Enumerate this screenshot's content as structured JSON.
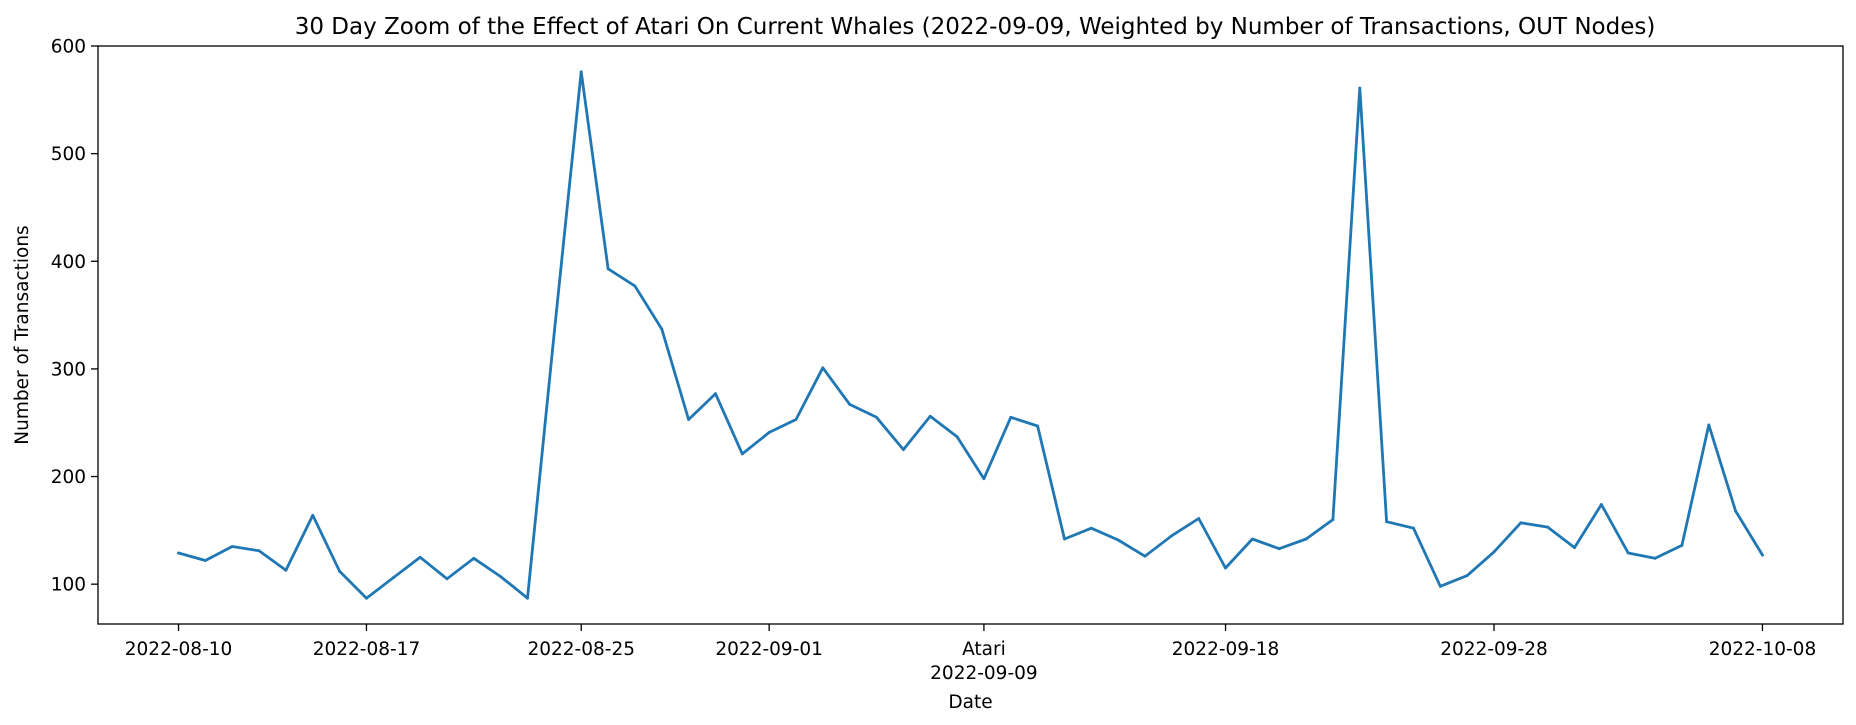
{
  "chart_data": {
    "type": "line",
    "title": "30 Day Zoom of the Effect of Atari On Current Whales (2022-09-09, Weighted by Number of Transactions, OUT Nodes)",
    "xlabel": "Date",
    "ylabel": "Number of Transactions",
    "ylim": [
      63,
      600
    ],
    "xlim": [
      "2022-08-07",
      "2022-10-11"
    ],
    "grid": false,
    "yticks": [
      100,
      200,
      300,
      400,
      500,
      600
    ],
    "xticks": [
      {
        "date": "2022-08-10",
        "label": "2022-08-10"
      },
      {
        "date": "2022-08-17",
        "label": "2022-08-17"
      },
      {
        "date": "2022-08-25",
        "label": "2022-08-25"
      },
      {
        "date": "2022-09-01",
        "label": "2022-09-01"
      },
      {
        "date": "2022-09-09",
        "label": "Atari",
        "label2": "2022-09-09"
      },
      {
        "date": "2022-09-18",
        "label": "2022-09-18"
      },
      {
        "date": "2022-09-28",
        "label": "2022-09-28"
      },
      {
        "date": "2022-10-08",
        "label": "2022-10-08"
      }
    ],
    "line_color": "#1f77b4",
    "series": [
      {
        "x": [
          "2022-08-10",
          "2022-08-11",
          "2022-08-12",
          "2022-08-13",
          "2022-08-14",
          "2022-08-15",
          "2022-08-16",
          "2022-08-17",
          "2022-08-18",
          "2022-08-19",
          "2022-08-20",
          "2022-08-21",
          "2022-08-22",
          "2022-08-23",
          "2022-08-24",
          "2022-08-25",
          "2022-08-26",
          "2022-08-27",
          "2022-08-28",
          "2022-08-29",
          "2022-08-30",
          "2022-08-31",
          "2022-09-01",
          "2022-09-02",
          "2022-09-03",
          "2022-09-04",
          "2022-09-05",
          "2022-09-06",
          "2022-09-07",
          "2022-09-08",
          "2022-09-09",
          "2022-09-10",
          "2022-09-11",
          "2022-09-12",
          "2022-09-13",
          "2022-09-14",
          "2022-09-15",
          "2022-09-16",
          "2022-09-17",
          "2022-09-18",
          "2022-09-19",
          "2022-09-20",
          "2022-09-21",
          "2022-09-22",
          "2022-09-23",
          "2022-09-24",
          "2022-09-25",
          "2022-09-26",
          "2022-09-27",
          "2022-09-28",
          "2022-09-29",
          "2022-09-30",
          "2022-10-01",
          "2022-10-02",
          "2022-10-03",
          "2022-10-04",
          "2022-10-05",
          "2022-10-06",
          "2022-10-07",
          "2022-10-08"
        ],
        "values": [
          129,
          122,
          135,
          131,
          113,
          164,
          112,
          87,
          106,
          125,
          105,
          124,
          107,
          87,
          335,
          576,
          393,
          377,
          337,
          253,
          277,
          221,
          241,
          253,
          301,
          267,
          255,
          225,
          256,
          237,
          198,
          255,
          247,
          142,
          152,
          141,
          126,
          145,
          161,
          115,
          142,
          133,
          142,
          160,
          561,
          158,
          152,
          98,
          108,
          130,
          157,
          153,
          134,
          174,
          129,
          124,
          136,
          248,
          168,
          127
        ]
      }
    ]
  }
}
